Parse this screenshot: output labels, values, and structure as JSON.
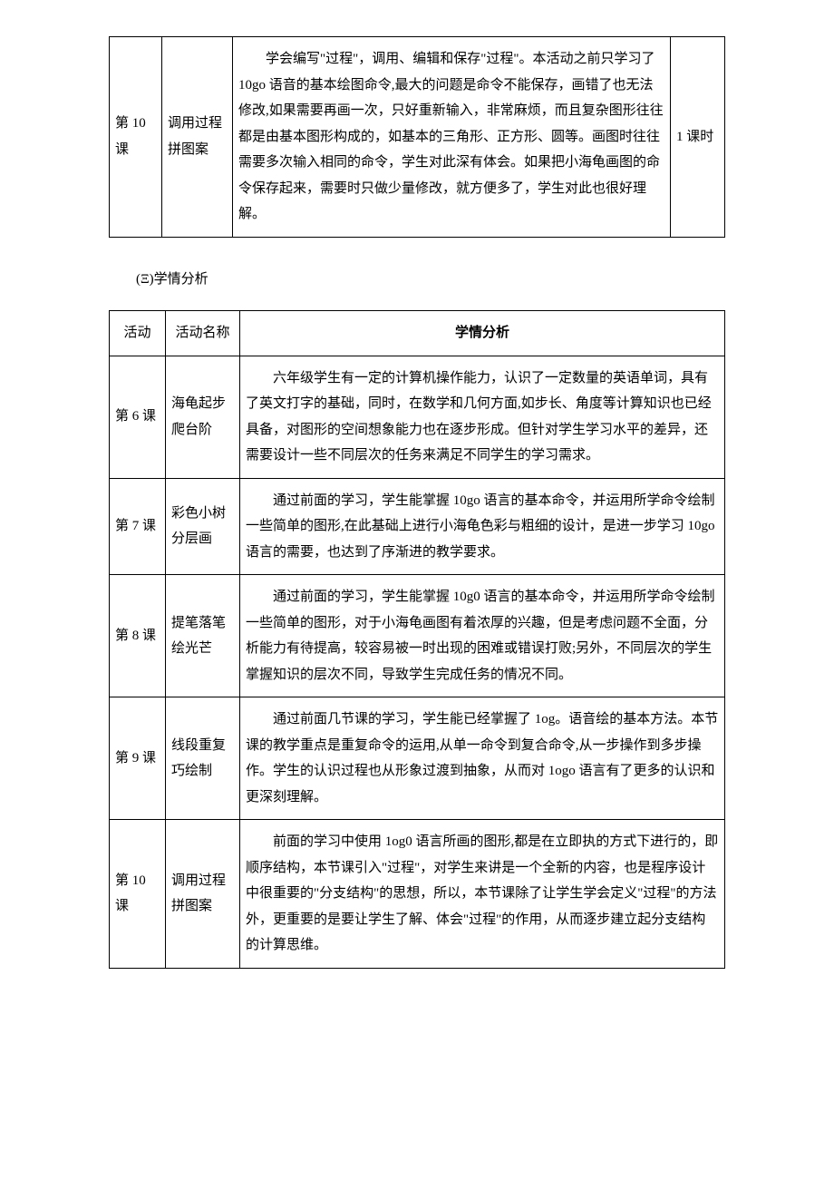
{
  "table1": {
    "row": {
      "activity": "第 10 课",
      "name": "调用过程拼图案",
      "description": "　　学会编写\"过程\"，调用、编辑和保存\"过程\"。本活动之前只学习了 10go 语音的基本绘图命令,最大的问题是命令不能保存，画错了也无法修改,如果需要再画一次，只好重新输入，非常麻烦，而且复杂图形往往都是由基本图形构成的，如基本的三角形、正方形、圆等。画图时往往需要多次输入相同的命令，学生对此深有体会。如果把小海龟画图的命令保存起来，需要时只做少量修改，就方便多了，学生对此也很好理解。",
      "hours": "1 课时"
    }
  },
  "section_title": "(Ξ)学情分析",
  "table2": {
    "headers": {
      "activity": "活动",
      "name": "活动名称",
      "analysis": "学情分析"
    },
    "rows": [
      {
        "activity": "第 6 课",
        "name": "海龟起步爬台阶",
        "analysis": "　　六年级学生有一定的计算机操作能力，认识了一定数量的英语单词，具有了英文打字的基础，同时，在数学和几何方面,如步长、角度等计算知识也已经具备，对图形的空间想象能力也在逐步形成。但针对学生学习水平的差异，还需要设计一些不同层次的任务来满足不同学生的学习需求。"
      },
      {
        "activity": "第 7 课",
        "name": "彩色小树分层画",
        "analysis": "　　通过前面的学习，学生能掌握 10go 语言的基本命令，并运用所学命令绘制一些简单的图形,在此基础上进行小海龟色彩与粗细的设计，是进一步学习 10go 语言的需要，也达到了序渐进的教学要求。"
      },
      {
        "activity": "第 8 课",
        "name": "提笔落笔绘光芒",
        "analysis": "　　通过前面的学习，学生能掌握 10g0 语言的基本命令，并运用所学命令绘制一些简单的图形，对于小海龟画图有着浓厚的兴趣，但是考虑问题不全面，分析能力有待提高，较容易被一时出现的困难或错误打败;另外，不同层次的学生掌握知识的层次不同，导致学生完成任务的情况不同。"
      },
      {
        "activity": "第 9 课",
        "name": "线段重复巧绘制",
        "analysis": "　　通过前面几节课的学习，学生能已经掌握了 1og。语音绘的基本方法。本节课的教学重点是重复命令的运用,从单一命令到复合命令,从一步操作到多步操作。学生的认识过程也从形象过渡到抽象，从而对 1ogo 语言有了更多的认识和更深刻理解。"
      },
      {
        "activity": " 第 10 课",
        "name": "调用过程拼图案",
        "analysis": "　　前面的学习中使用 1og0 语言所画的图形,都是在立即执的方式下进行的，即顺序结构，本节课引入\"过程\"，对学生来讲是一个全新的内容，也是程序设计中很重要的\"分支结构\"的思想，所以，本节课除了让学生学会定义\"过程\"的方法外，更重要的是要让学生了解、体会\"过程\"的作用，从而逐步建立起分支结构的计算思维。"
      }
    ]
  }
}
